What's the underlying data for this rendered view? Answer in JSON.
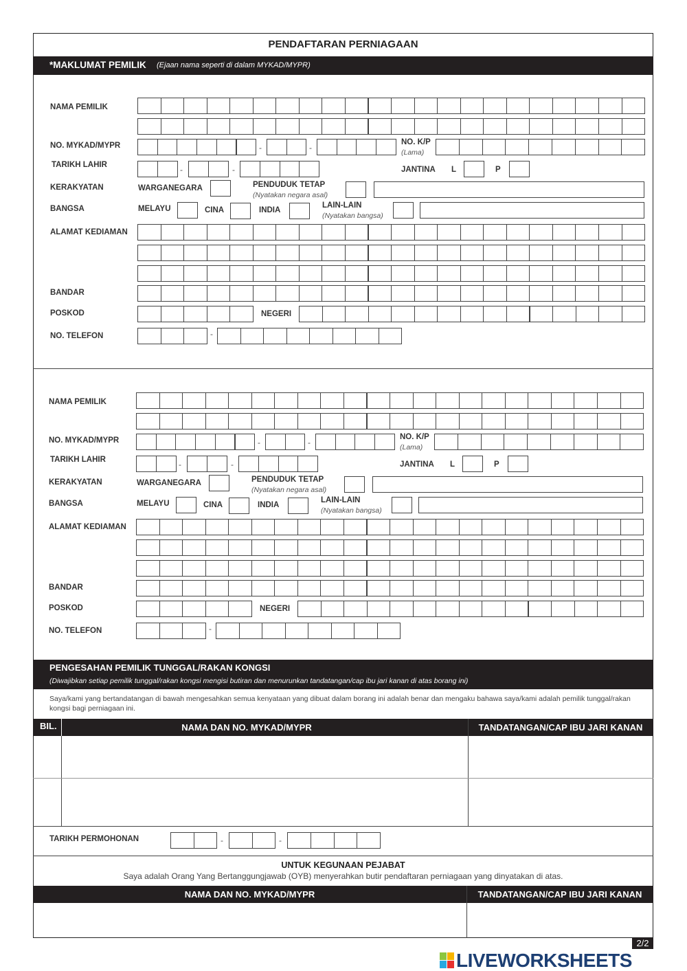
{
  "title": "PENDAFTARAN PERNIAGAAN",
  "section1": {
    "heading": "*MAKLUMAT PEMILIK",
    "note": "(Ejaan nama seperti di dalam MYKAD/MYPR)"
  },
  "owner_form": {
    "nama_pemilik": "NAMA PEMILIK",
    "no_mykad": "NO. MYKAD/MYPR",
    "no_kp": "NO. K/P",
    "no_kp_note": "(Lama)",
    "tarikh_lahir": "TARIKH LAHIR",
    "jantina": "JANTINA",
    "jantina_l": "L",
    "jantina_p": "P",
    "kerakyatan": "KERAKYATAN",
    "warganegara": "WARGANEGARA",
    "penduduk_tetap": "PENDUDUK TETAP",
    "penduduk_note": "(Nyatakan negara asal)",
    "bangsa": "BANGSA",
    "melayu": "MELAYU",
    "cina": "CINA",
    "india": "INDIA",
    "lain_lain": "LAIN-LAIN",
    "lain_note": "(Nyatakan bangsa)",
    "alamat": "ALAMAT KEDIAMAN",
    "bandar": "BANDAR",
    "poskod": "POSKOD",
    "negeri": "NEGERI",
    "telefon": "NO. TELEFON",
    "dash": "-"
  },
  "confirmation": {
    "heading": "PENGESAHAN PEMILIK TUNGGAL/RAKAN KONGSI",
    "note": "(Diwajibkan setiap pemilik tunggal/rakan kongsi mengisi butiran dan menurunkan tandatangan/cap ibu jari kanan di atas borang ini)",
    "statement": "Saya/kami yang bertandatangan di bawah mengesahkan semua kenyataan yang dibuat dalam borang ini adalah benar dan mengaku bahawa saya/kami adalah pemilik tunggal/rakan kongsi bagi perniagaan ini.",
    "columns": [
      "BIL.",
      "NAMA DAN NO. MYKAD/MYPR",
      "TANDATANGAN/CAP IBU JARI KANAN"
    ],
    "tarikh_permohonan": "TARIKH PERMOHONAN"
  },
  "office": {
    "heading": "UNTUK KEGUNAAN PEJABAT",
    "statement": "Saya adalah Orang Yang Bertanggungjawab (OYB) menyerahkan butir pendaftaran perniagaan yang dinyatakan di atas.",
    "columns": [
      "NAMA DAN NO. MYKAD/MYPR",
      "TANDATANGAN/CAP IBU JARI KANAN"
    ]
  },
  "page_number": "2/2",
  "watermark": "LIVEWORKSHEETS"
}
